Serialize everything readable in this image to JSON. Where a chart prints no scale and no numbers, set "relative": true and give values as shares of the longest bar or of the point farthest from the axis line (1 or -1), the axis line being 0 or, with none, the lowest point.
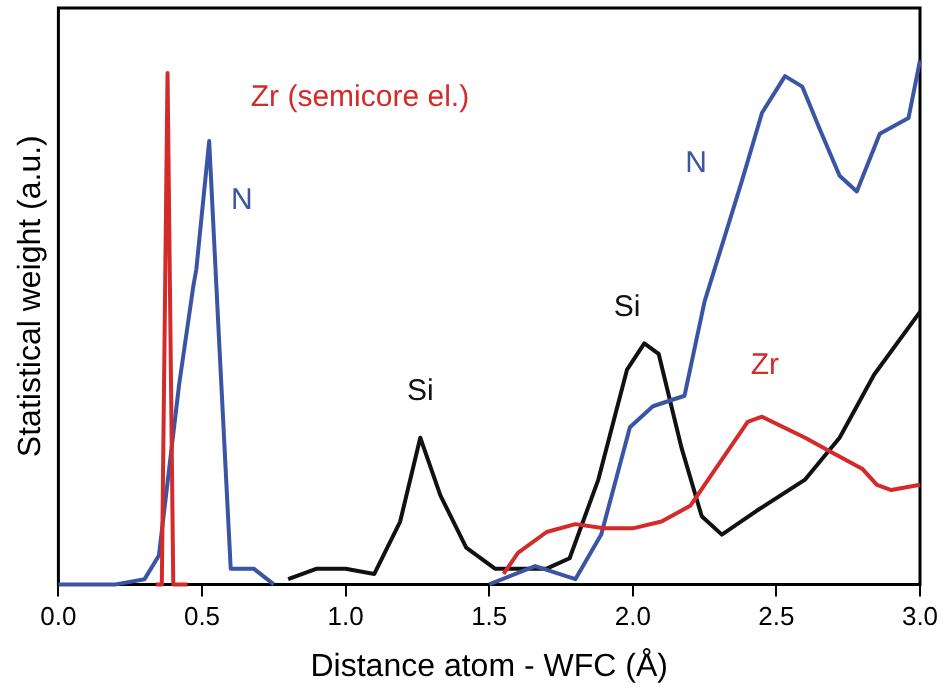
{
  "chart_data": {
    "type": "line",
    "relative": true,
    "tick_labels": "x",
    "grid": false,
    "legend": false,
    "marker": "none",
    "line_style": "solid",
    "xlabel": "Distance atom - WFC (Å)",
    "ylabel": "Statistical weight (a.u.)",
    "xlim": [
      0,
      3
    ],
    "xticks": [
      {
        "value": 0,
        "label": "0.0"
      },
      {
        "value": 0.5,
        "label": "0.5"
      },
      {
        "value": 1,
        "label": "1.0"
      },
      {
        "value": 1.5,
        "label": "1.5"
      },
      {
        "value": 2,
        "label": "2.0"
      },
      {
        "value": 2.5,
        "label": "2.5"
      },
      {
        "value": 3,
        "label": "3.0"
      }
    ],
    "annotations": [
      "Zr (semicore el.)",
      "N",
      "Si",
      "Si",
      "N",
      "Zr"
    ],
    "series": [
      {
        "color": "#d42a2a",
        "x": [
          0.34,
          0.36,
          0.38,
          0.4,
          0.45,
          1.0,
          1.55,
          1.6,
          1.7,
          1.8,
          1.9,
          2.0,
          2.1,
          2.2,
          2.3,
          2.4,
          2.45,
          2.6,
          2.7,
          2.8,
          2.85,
          2.9,
          3.0
        ],
        "values": [
          0,
          0,
          0.976,
          0,
          0,
          null,
          0.02,
          0.06,
          0.1,
          0.115,
          0.107,
          0.107,
          0.12,
          0.15,
          0.23,
          0.31,
          0.32,
          0.28,
          0.25,
          0.22,
          0.19,
          0.18,
          0.19
        ]
      },
      {
        "color": "#3a55a4",
        "x": [
          0,
          0.2,
          0.3,
          0.35,
          0.42,
          0.47,
          0.48,
          0.525,
          0.56,
          0.6,
          0.68,
          0.75,
          1.0,
          1.5,
          1.66,
          1.8,
          1.89,
          1.99,
          2.07,
          2.18,
          2.25,
          2.38,
          2.45,
          2.53,
          2.59,
          2.65,
          2.72,
          2.78,
          2.86,
          2.96,
          3.0
        ],
        "values": [
          0,
          0,
          0.01,
          0.055,
          0.38,
          0.57,
          0.6,
          0.846,
          0.46,
          0.03,
          0.03,
          0,
          null,
          0,
          0.035,
          0.01,
          0.095,
          0.3,
          0.34,
          0.36,
          0.54,
          0.77,
          0.9,
          0.97,
          0.95,
          0.87,
          0.78,
          0.75,
          0.86,
          0.89,
          1.0
        ]
      },
      {
        "color": "#111111",
        "x": [
          0.8,
          0.9,
          1.0,
          1.1,
          1.19,
          1.26,
          1.33,
          1.42,
          1.52,
          1.7,
          1.78,
          1.88,
          1.98,
          2.04,
          2.09,
          2.17,
          2.24,
          2.31,
          2.43,
          2.6,
          2.72,
          2.84,
          3.0
        ],
        "values": [
          0.01,
          0.03,
          0.03,
          0.02,
          0.12,
          0.28,
          0.17,
          0.07,
          0.03,
          0.03,
          0.05,
          0.2,
          0.41,
          0.46,
          0.44,
          0.26,
          0.13,
          0.095,
          0.14,
          0.2,
          0.28,
          0.4,
          0.52
        ]
      }
    ]
  }
}
